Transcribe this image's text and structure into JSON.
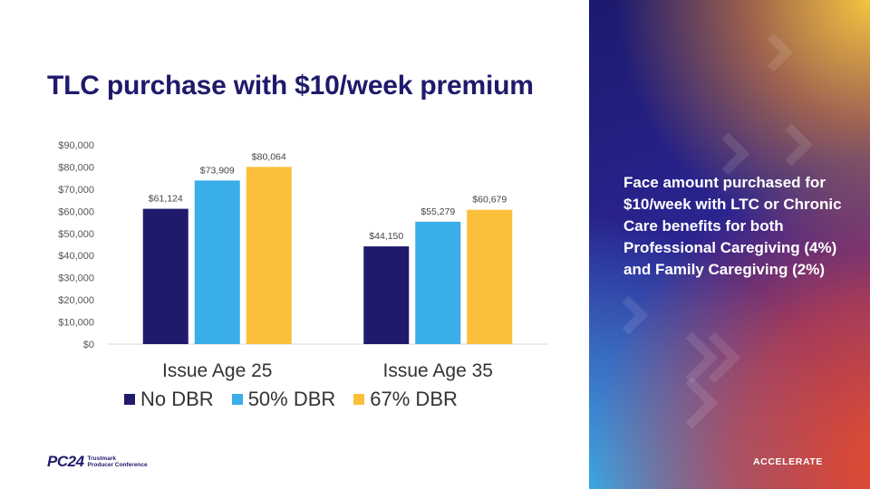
{
  "slide": {
    "title": "TLC purchase with $10/week premium",
    "side_text": "Face amount purchased for $10/week with LTC or Chronic Care benefits for both Professional Caregiving (4%) and Family Caregiving (2%)",
    "brand_mark": "PC24",
    "brand_text_line1": "Trustmark",
    "brand_text_line2": "Producer Conference",
    "accelerate": "ACCELERATE"
  },
  "chart_data": {
    "type": "bar",
    "title": "",
    "xlabel": "",
    "ylabel": "",
    "categories": [
      "Issue Age 25",
      "Issue Age 35"
    ],
    "series": [
      {
        "name": "No DBR",
        "values": [
          61124,
          44150
        ],
        "labels": [
          "$61,124",
          "$44,150"
        ],
        "color": "#1f1a6b"
      },
      {
        "name": "50% DBR",
        "values": [
          73909,
          55279
        ],
        "labels": [
          "$73,909",
          "$55,279"
        ],
        "color": "#3aaee8"
      },
      {
        "name": "67% DBR",
        "values": [
          80064,
          60679
        ],
        "labels": [
          "$80,064",
          "$60,679"
        ],
        "color": "#fbbf3c"
      }
    ],
    "ylim": [
      0,
      90000
    ],
    "yticks": [
      0,
      10000,
      20000,
      30000,
      40000,
      50000,
      60000,
      70000,
      80000,
      90000
    ],
    "ytick_labels": [
      "$0",
      "$10,000",
      "$20,000",
      "$30,000",
      "$40,000",
      "$50,000",
      "$60,000",
      "$70,000",
      "$80,000",
      "$90,000"
    ],
    "grid": false,
    "legend": "bottom-left"
  }
}
